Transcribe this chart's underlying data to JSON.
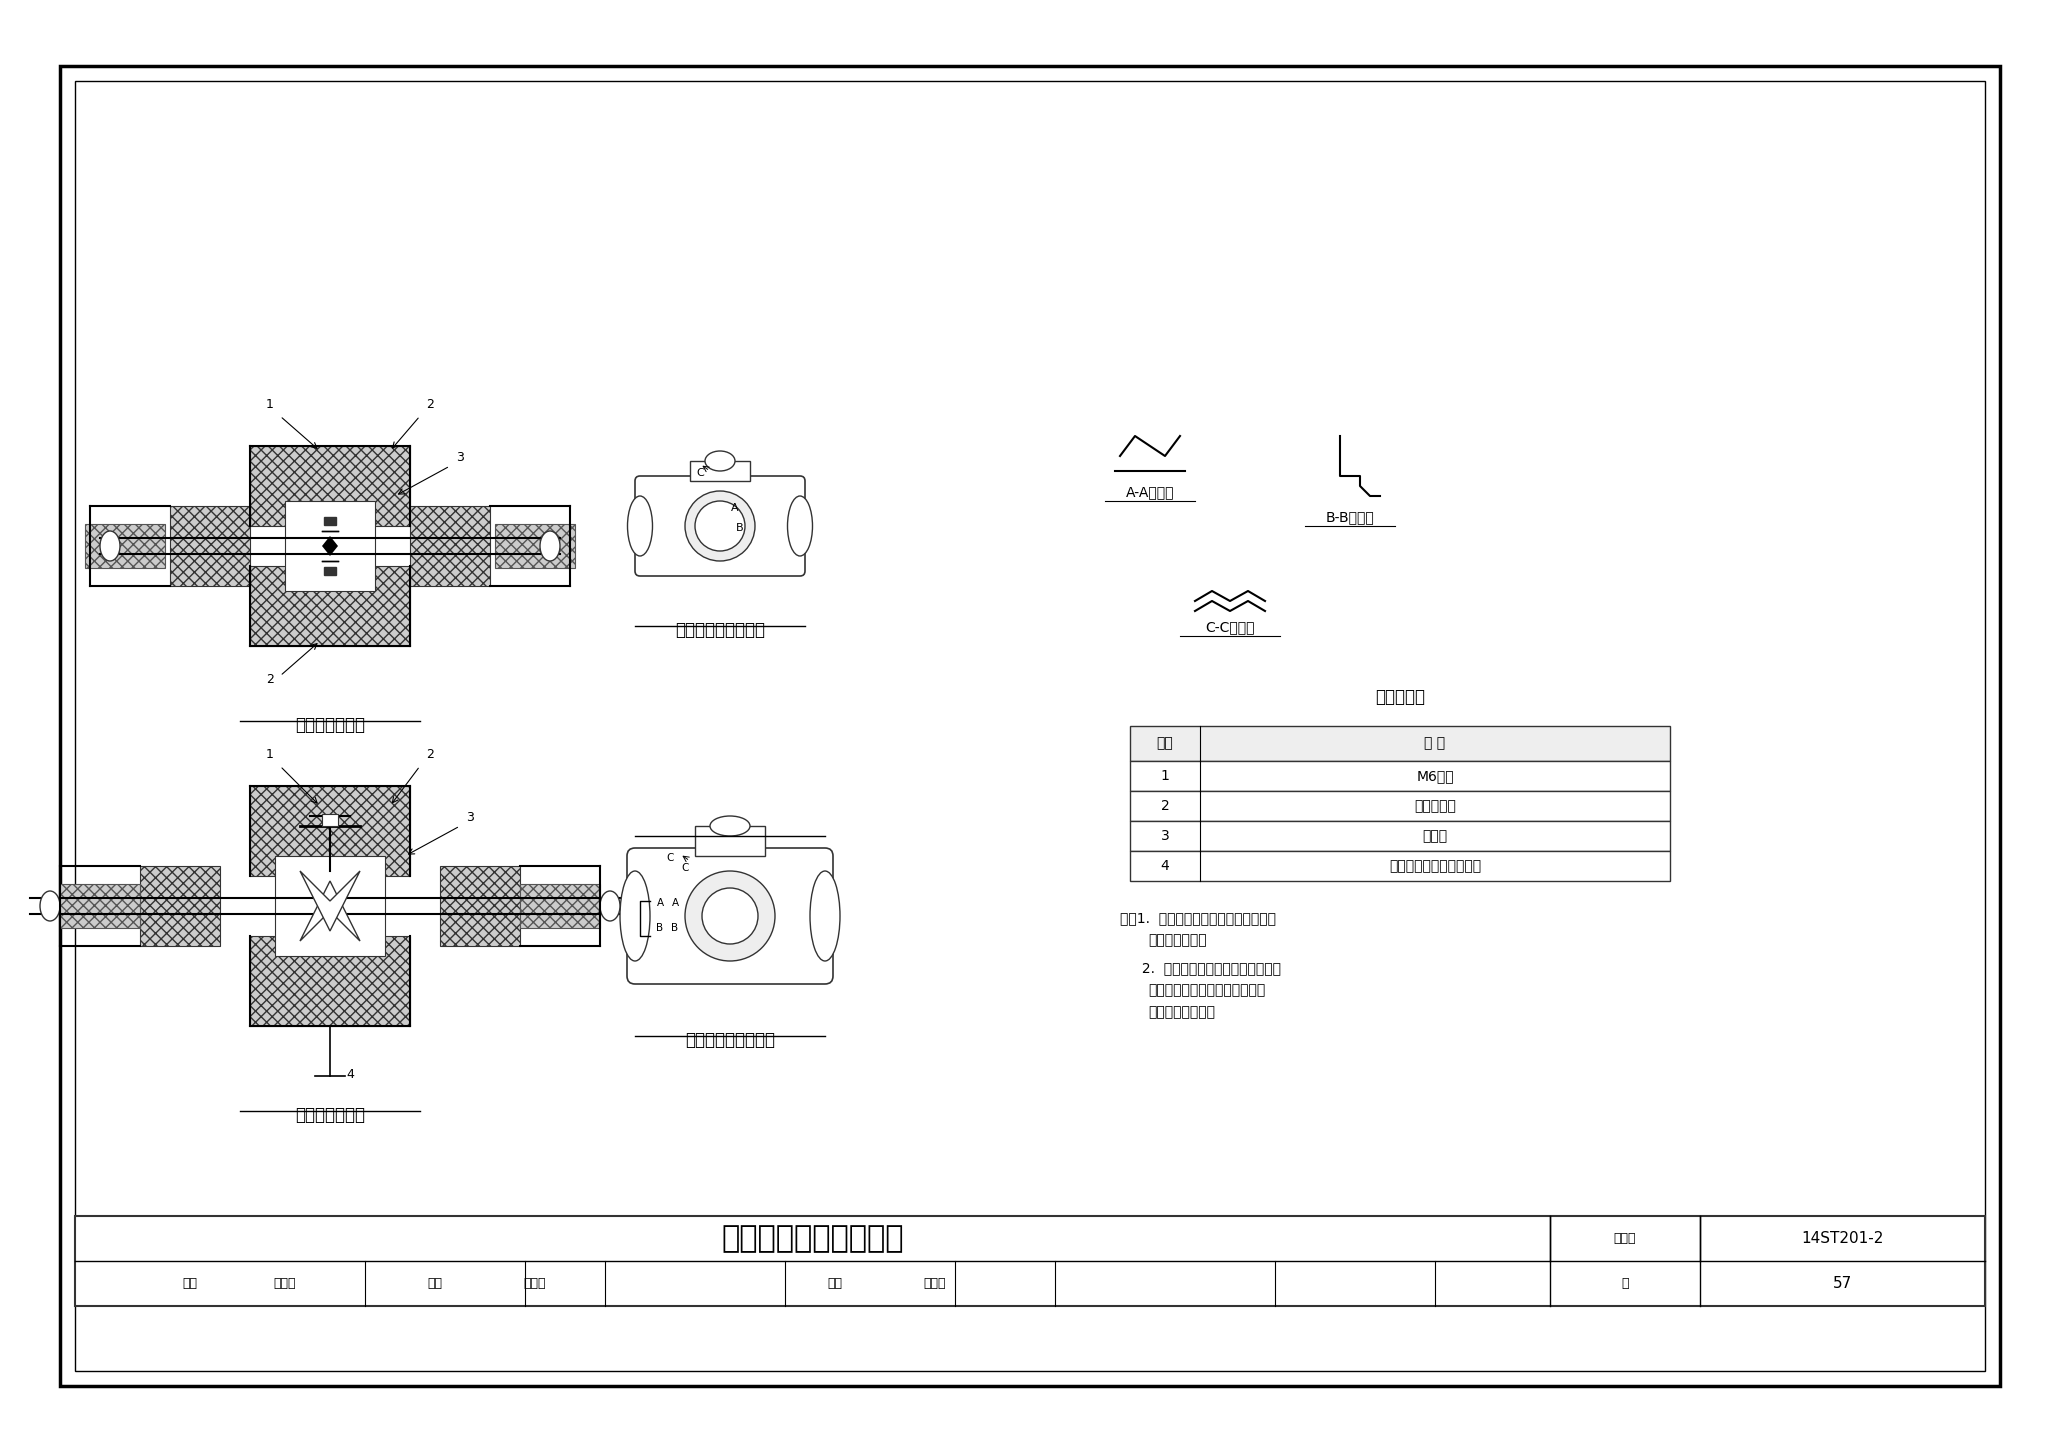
{
  "title": "法兰、阀门保温结构图",
  "atlas_no": "14ST201-2",
  "page": "57",
  "review": "审核",
  "reviewer": "张先群",
  "check": "校对",
  "checker": "赵际顺",
  "design": "设计",
  "designer": "赵恒鹏",
  "page_label": "页",
  "table_title": "名称对照表",
  "table_headers": [
    "编号",
    "名 称"
  ],
  "table_rows": [
    [
      "1",
      "M6螺栓"
    ],
    [
      "2",
      "金属保护罩"
    ],
    [
      "3",
      "绝热层"
    ],
    [
      "4",
      "排水管（用于有泄漏时）"
    ]
  ],
  "note_title": "注：",
  "note1": "1. 法兰、阀门保温厚度与连接管道\n   保温厚度相同。",
  "note2": "2. 固定式法兰、阀门保温用于地沟\n   时，其保护层做法应与地沟管道\n   保护层做法相同。",
  "label_flange": "可拆式法兰保温",
  "label_flange_cover": "法兰保温金属保护罩",
  "label_valve": "可拆式阀门保温",
  "label_valve_cover": "阀门保温金属保护罩",
  "label_aa": "A-A剖面图",
  "label_bb": "B-B剖面图",
  "label_cc": "C-C剖面图",
  "bg_color": "#ffffff",
  "border_color": "#000000",
  "hatch_color": "#888888",
  "line_color": "#000000",
  "font_size_title": 18,
  "font_size_label": 11,
  "font_size_table": 10,
  "font_size_note": 9.5
}
